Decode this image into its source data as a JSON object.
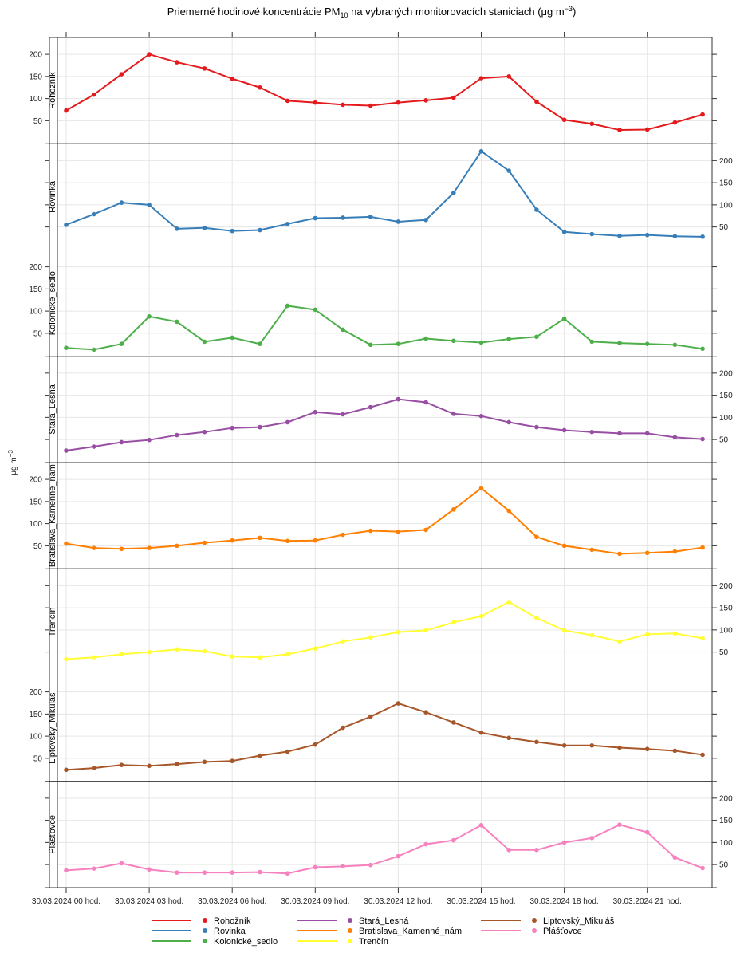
{
  "chart_data": {
    "type": "line",
    "title_parts": [
      "Priemerné hodinové koncentrácie PM",
      "10",
      " na vybraných monitorovacích staniciach (μg m",
      "−3",
      ")"
    ],
    "ylabel_parts": [
      "μg m",
      "−3"
    ],
    "xlabel": "",
    "x": [
      0,
      1,
      2,
      3,
      4,
      5,
      6,
      7,
      8,
      9,
      10,
      11,
      12,
      13,
      14,
      15,
      16,
      17,
      18,
      19,
      20,
      21,
      22,
      23
    ],
    "x_unit": "hour of 30.03.2024",
    "x_ticks": [
      0,
      3,
      6,
      9,
      12,
      15,
      18,
      21
    ],
    "x_tick_labels": [
      "30.03.2024 00 hod.",
      "30.03.2024 03 hod.",
      "30.03.2024 06 hod.",
      "30.03.2024 09 hod.",
      "30.03.2024 12 hod.",
      "30.03.2024 15 hod.",
      "30.03.2024 18 hod.",
      "30.03.2024 21 hod."
    ],
    "y_ticks": [
      50,
      100,
      150,
      200
    ],
    "y_tick_labels": [
      "50",
      "100",
      "150",
      "200"
    ],
    "ylim": [
      -2,
      238
    ],
    "grid": true,
    "legend_position": "bottom",
    "series": [
      {
        "name": "Rohožník",
        "color": "#E41A1C",
        "values": [
          73,
          109,
          155,
          200,
          182,
          168,
          145,
          125,
          95,
          91,
          86,
          84,
          91,
          96,
          102,
          146,
          150,
          93,
          52,
          43,
          29,
          30,
          46,
          64
        ]
      },
      {
        "name": "Rovinka",
        "color": "#377EB8",
        "values": [
          55,
          79,
          105,
          100,
          46,
          48,
          41,
          43,
          57,
          70,
          71,
          73,
          62,
          66,
          127,
          221,
          177,
          89,
          39,
          34,
          30,
          32,
          29,
          28
        ]
      },
      {
        "name": "Kolonické_sedlo",
        "color": "#4DAF4A",
        "values": [
          17,
          13,
          26,
          88,
          76,
          31,
          40,
          26,
          112,
          103,
          58,
          24,
          26,
          38,
          33,
          29,
          37,
          42,
          83,
          31,
          28,
          26,
          24,
          15
        ]
      },
      {
        "name": "Stará_Lesná",
        "color": "#984EA3",
        "values": [
          25,
          34,
          44,
          49,
          60,
          67,
          76,
          78,
          89,
          112,
          107,
          123,
          141,
          134,
          108,
          103,
          89,
          78,
          71,
          67,
          64,
          64,
          55,
          51
        ]
      },
      {
        "name": "Bratislava_Kamenné_nám",
        "color": "#FF7F00",
        "values": [
          55,
          45,
          43,
          45,
          50,
          57,
          62,
          68,
          61,
          62,
          75,
          84,
          82,
          86,
          132,
          180,
          129,
          70,
          50,
          41,
          32,
          34,
          37,
          46
        ]
      },
      {
        "name": "Trenčín",
        "color": "#FFFF33",
        "values": [
          34,
          38,
          45,
          50,
          56,
          52,
          40,
          38,
          45,
          58,
          74,
          83,
          95,
          99,
          117,
          131,
          163,
          127,
          99,
          88,
          74,
          90,
          92,
          81
        ]
      },
      {
        "name": "Liptovský_Mikuláš",
        "color": "#A65628",
        "values": [
          24,
          28,
          35,
          33,
          37,
          42,
          44,
          56,
          65,
          81,
          119,
          144,
          174,
          154,
          131,
          108,
          96,
          87,
          79,
          79,
          74,
          71,
          67,
          58
        ]
      },
      {
        "name": "Plášťovce",
        "color": "#F781BF",
        "values": [
          37,
          41,
          53,
          39,
          32,
          32,
          32,
          33,
          30,
          44,
          46,
          49,
          69,
          96,
          105,
          139,
          83,
          83,
          100,
          110,
          140,
          123,
          66,
          42
        ]
      }
    ]
  }
}
